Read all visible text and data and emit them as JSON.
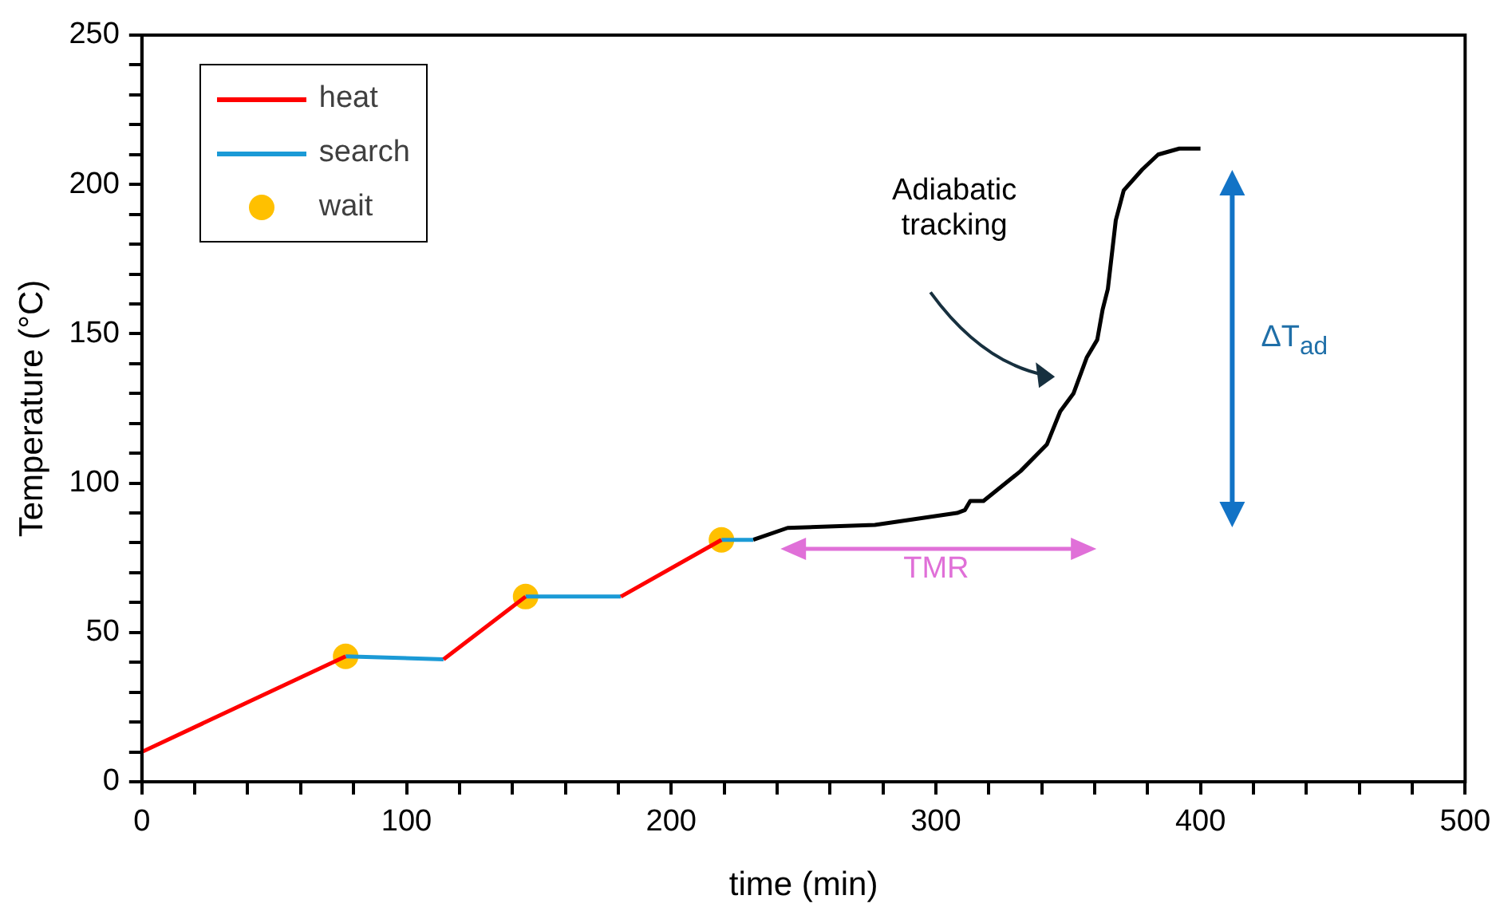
{
  "chart_data": {
    "type": "line",
    "xlabel": "time (min)",
    "ylabel": "Temperature (°C)",
    "xlim": [
      0,
      500
    ],
    "ylim": [
      0,
      250
    ],
    "xticks": [
      0,
      {
        "value": 20,
        "label": null
      },
      {
        "value": 40,
        "label": null
      },
      {
        "value": 60,
        "label": null
      },
      {
        "value": 80,
        "label": null
      },
      100,
      {
        "value": 120,
        "label": null
      },
      {
        "value": 140,
        "label": null
      },
      {
        "value": 160,
        "label": null
      },
      {
        "value": 180,
        "label": null
      },
      200,
      {
        "value": 220,
        "label": null
      },
      {
        "value": 240,
        "label": null
      },
      {
        "value": 260,
        "label": null
      },
      {
        "value": 280,
        "label": null
      },
      300,
      {
        "value": 320,
        "label": null
      },
      {
        "value": 340,
        "label": null
      },
      {
        "value": 360,
        "label": null
      },
      {
        "value": 380,
        "label": null
      },
      400,
      {
        "value": 420,
        "label": null
      },
      {
        "value": 440,
        "label": null
      },
      {
        "value": 460,
        "label": null
      },
      {
        "value": 480,
        "label": null
      },
      500
    ],
    "yticks": [
      0,
      {
        "value": 10,
        "label": null
      },
      {
        "value": 20,
        "label": null
      },
      {
        "value": 30,
        "label": null
      },
      {
        "value": 40,
        "label": null
      },
      50,
      {
        "value": 60,
        "label": null
      },
      {
        "value": 70,
        "label": null
      },
      {
        "value": 80,
        "label": null
      },
      {
        "value": 90,
        "label": null
      },
      100,
      {
        "value": 110,
        "label": null
      },
      {
        "value": 120,
        "label": null
      },
      {
        "value": 130,
        "label": null
      },
      {
        "value": 140,
        "label": null
      },
      150,
      {
        "value": 160,
        "label": null
      },
      {
        "value": 170,
        "label": null
      },
      {
        "value": 180,
        "label": null
      },
      {
        "value": 190,
        "label": null
      },
      200,
      {
        "value": 210,
        "label": null
      },
      {
        "value": 220,
        "label": null
      },
      {
        "value": 230,
        "label": null
      },
      {
        "value": 240,
        "label": null
      },
      250
    ],
    "grid": false,
    "legend": "top left",
    "line_style": "solid",
    "marker": "none",
    "series": [
      {
        "name": "heat",
        "color": "#ff0000",
        "x": [
          0,
          77,
          95,
          114,
          145,
          165,
          181,
          219
        ],
        "values": [
          10,
          42,
          null,
          41,
          62,
          null,
          62,
          81
        ]
      },
      {
        "name": "search",
        "color": "#1b9ad6",
        "x": [
          77,
          114,
          130,
          145,
          181,
          200,
          219,
          231
        ],
        "values": [
          42,
          41,
          null,
          62,
          62,
          null,
          81,
          81
        ]
      },
      {
        "color": "#000000",
        "x": [
          231,
          244,
          277,
          308,
          311,
          313,
          318,
          332,
          342,
          347,
          352,
          357,
          361,
          363,
          365,
          368,
          371,
          378,
          384,
          392,
          400
        ],
        "values": [
          81,
          85,
          86,
          90,
          91,
          94,
          94,
          104,
          113,
          124,
          130,
          142,
          148,
          158,
          165,
          188,
          198,
          205,
          210,
          212,
          212
        ]
      },
      {
        "name": "wait",
        "type": "scatter",
        "marker": "circle",
        "color": "#ffc000",
        "x": [
          77,
          145,
          219
        ],
        "values": [
          42,
          62,
          81
        ]
      }
    ],
    "annotations": [
      "Adiabatic tracking",
      "TMR",
      "ΔT$_{ad}$"
    ]
  }
}
